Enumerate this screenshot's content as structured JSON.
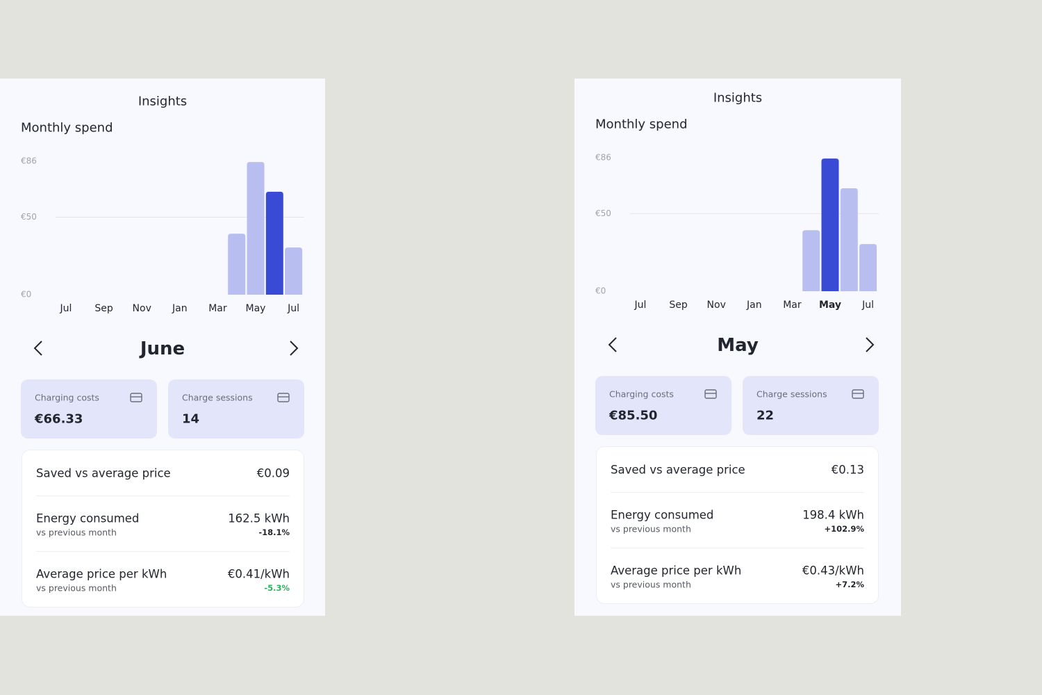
{
  "screens": [
    {
      "title": "Insights",
      "section": "Monthly spend",
      "chart": {
        "type": "bar",
        "categories": [
          "Jul",
          null,
          "Sep",
          null,
          "Nov",
          null,
          "Jan",
          null,
          "Mar",
          null,
          "May",
          null,
          "Jul"
        ],
        "values": [
          null,
          null,
          null,
          null,
          null,
          null,
          null,
          null,
          null,
          39.3,
          85.5,
          66.33,
          30.4
        ],
        "color": "#b9bef1",
        "highlight_color": "#394bd5",
        "highlight": 11,
        "ylim": [
          0,
          86
        ],
        "yticks": [
          {
            "value": 0,
            "label": "€0"
          },
          {
            "value": 50,
            "label": "€50"
          },
          {
            "value": 86,
            "label": "€86"
          }
        ],
        "grid": true
      },
      "month": "June",
      "cards": [
        {
          "label": "Charging costs",
          "value": "€66.33"
        },
        {
          "label": "Charge sessions",
          "value": "14"
        }
      ],
      "rows": [
        {
          "label": "Saved vs average price",
          "value": "€0.09"
        },
        {
          "label": "Energy consumed",
          "sublabel": "vs previous month",
          "value": "162.5 kWh",
          "change": "-18.1%",
          "change_color": "#23262e"
        },
        {
          "label": "Average price per kWh",
          "sublabel": "vs previous month",
          "value": "€0.41/kWh",
          "change": "-5.3%",
          "change_color": "#27b55d"
        }
      ]
    },
    {
      "title": "Insights",
      "section": "Monthly spend",
      "chart": {
        "type": "bar",
        "categories": [
          "Jul",
          null,
          "Sep",
          null,
          "Nov",
          null,
          "Jan",
          null,
          "Mar",
          null,
          "May",
          null,
          "Jul"
        ],
        "values": [
          null,
          null,
          null,
          null,
          null,
          null,
          null,
          null,
          null,
          39.3,
          85.5,
          66.33,
          30.4
        ],
        "color": "#b9bef1",
        "highlight_color": "#394bd5",
        "highlight": 10,
        "ylim": [
          0,
          86
        ],
        "yticks": [
          {
            "value": 0,
            "label": "€0"
          },
          {
            "value": 50,
            "label": "€50"
          },
          {
            "value": 86,
            "label": "€86"
          }
        ],
        "grid": true
      },
      "month": "May",
      "cards": [
        {
          "label": "Charging costs",
          "value": "€85.50"
        },
        {
          "label": "Charge sessions",
          "value": "22"
        }
      ],
      "rows": [
        {
          "label": "Saved vs average price",
          "value": "€0.13"
        },
        {
          "label": "Energy consumed",
          "sublabel": "vs previous month",
          "value": "198.4 kWh",
          "change": "+102.9%",
          "change_color": "#23262e"
        },
        {
          "label": "Average price per kWh",
          "sublabel": "vs previous month",
          "value": "€0.43/kWh",
          "change": "+7.2%",
          "change_color": "#23262e"
        }
      ]
    }
  ]
}
